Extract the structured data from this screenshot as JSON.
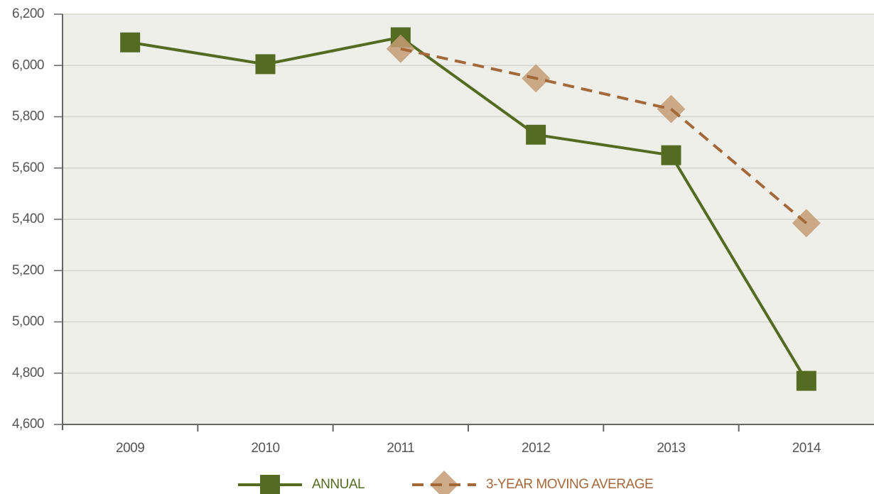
{
  "chart_data": {
    "type": "line",
    "categories": [
      "2009",
      "2010",
      "2011",
      "2012",
      "2013",
      "2014"
    ],
    "series": [
      {
        "name": "ANNUAL",
        "color": "#556b22",
        "marker": "square",
        "dashed": false,
        "values": [
          6090,
          6005,
          6110,
          5730,
          5650,
          4770
        ]
      },
      {
        "name": "3-YEAR MOVING AVERAGE",
        "color": "#a3693a",
        "marker_color": "#c49c74",
        "marker": "diamond",
        "dashed": true,
        "values": [
          null,
          null,
          6065,
          5950,
          5830,
          5385
        ]
      }
    ],
    "ylim": [
      4600,
      6200
    ],
    "yticks": [
      {
        "value": 4600,
        "label": "4,600"
      },
      {
        "value": 4800,
        "label": "4,800"
      },
      {
        "value": 5000,
        "label": "5,000"
      },
      {
        "value": 5200,
        "label": "5,200"
      },
      {
        "value": 5400,
        "label": "5,400"
      },
      {
        "value": 5600,
        "label": "5,600"
      },
      {
        "value": 5800,
        "label": "5,800"
      },
      {
        "value": 6000,
        "label": "6,000"
      },
      {
        "value": 6200,
        "label": "6,200"
      }
    ],
    "grid": true,
    "legend": "bottom"
  }
}
